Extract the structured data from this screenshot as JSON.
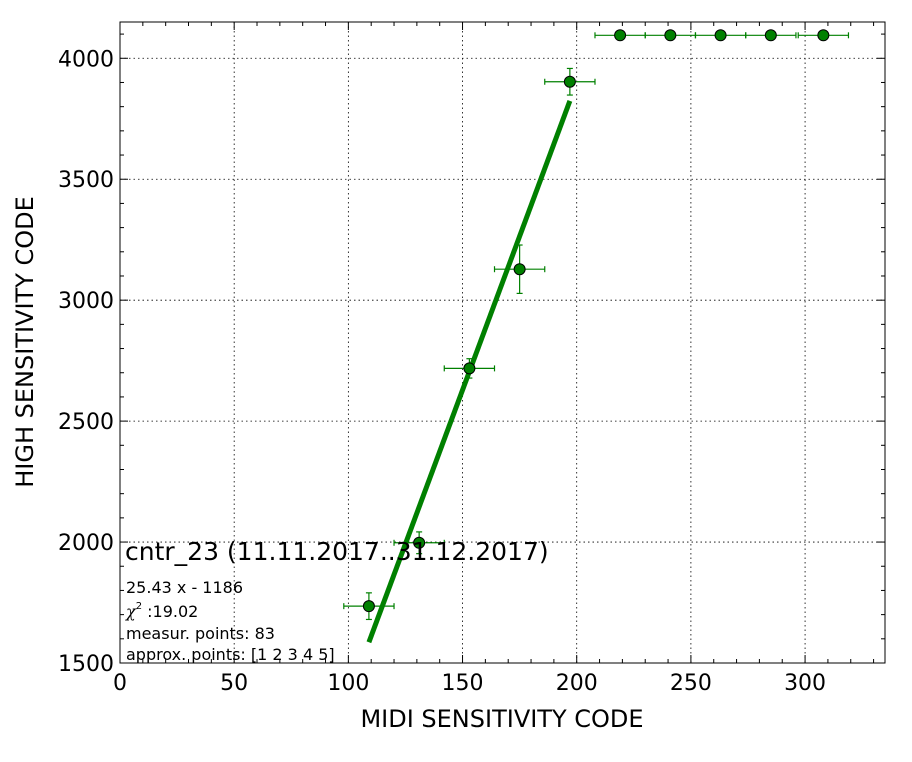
{
  "chart_data": {
    "type": "scatter",
    "xlabel": "MIDI SENSITIVITY CODE",
    "ylabel": "HIGH SENSITIVITY CODE",
    "xlim": [
      0,
      335
    ],
    "ylim": [
      1500,
      4150
    ],
    "xticks": [
      0,
      50,
      100,
      150,
      200,
      250,
      300
    ],
    "yticks": [
      1500,
      2000,
      2500,
      3000,
      3500,
      4000
    ],
    "grid": true,
    "colors": {
      "series": "#008000",
      "marker_fill": "#008000",
      "marker_edge": "#000000",
      "fit_line": "#008000"
    },
    "series": [
      {
        "points": [
          {
            "x": 109,
            "y": 1735,
            "xerr": 11,
            "yerr": 55
          },
          {
            "x": 131,
            "y": 1997,
            "xerr": 11,
            "yerr": 45
          },
          {
            "x": 153,
            "y": 2718,
            "xerr": 11,
            "yerr": 40
          },
          {
            "x": 175,
            "y": 3128,
            "xerr": 11,
            "yerr": 100
          },
          {
            "x": 197,
            "y": 3903,
            "xerr": 11,
            "yerr": 55
          },
          {
            "x": 219,
            "y": 4095,
            "xerr": 11,
            "yerr": 0
          },
          {
            "x": 241,
            "y": 4095,
            "xerr": 11,
            "yerr": 0
          },
          {
            "x": 263,
            "y": 4095,
            "xerr": 11,
            "yerr": 0
          },
          {
            "x": 285,
            "y": 4095,
            "xerr": 11,
            "yerr": 0
          },
          {
            "x": 308,
            "y": 4095,
            "xerr": 11,
            "yerr": 0
          }
        ]
      }
    ],
    "fit": {
      "slope": 25.43,
      "intercept": -1186,
      "x_range": [
        109,
        197
      ]
    },
    "annotations": {
      "title": "cntr_23 (11.11.2017..31.12.2017)",
      "equation": "25.43 x - 1186",
      "chi_symbol": "χ",
      "chi_superscript": "2",
      "chi_value": " :19.02",
      "measur_points": "measur. points: 83",
      "approx_points": "approx. points: [1 2 3 4 5]"
    }
  }
}
